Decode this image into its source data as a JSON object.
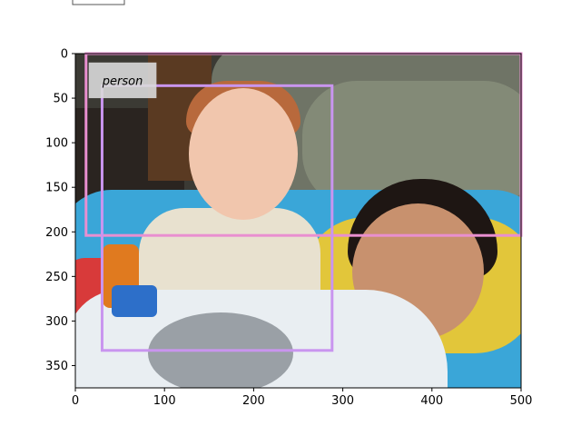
{
  "chart_data": {
    "type": "image",
    "title": "",
    "xlabel": "",
    "ylabel": "",
    "xlim": [
      0,
      500
    ],
    "ylim": [
      375,
      0
    ],
    "xticks": [
      0,
      100,
      200,
      300,
      400,
      500
    ],
    "yticks": [
      0,
      50,
      100,
      150,
      200,
      250,
      300,
      350
    ],
    "xtick_labels": [
      "0",
      "100",
      "200",
      "300",
      "400",
      "500"
    ],
    "ytick_labels": [
      "0",
      "50",
      "100",
      "150",
      "200",
      "250",
      "300",
      "350"
    ],
    "boxes": [
      {
        "label": "person",
        "x0": 12,
        "y0": 0,
        "x1": 500,
        "y1": 204,
        "color": "#e98fd0"
      },
      {
        "label": "",
        "x0": 30,
        "y0": 36,
        "x1": 288,
        "y1": 333,
        "color": "#c995ef"
      }
    ],
    "annotation": {
      "text": "person",
      "x": 15,
      "y": 10,
      "x_end": 91,
      "y_end": 50,
      "bg": "#d9d9d9"
    }
  },
  "legend": {
    "position": "top-left",
    "entries": []
  }
}
